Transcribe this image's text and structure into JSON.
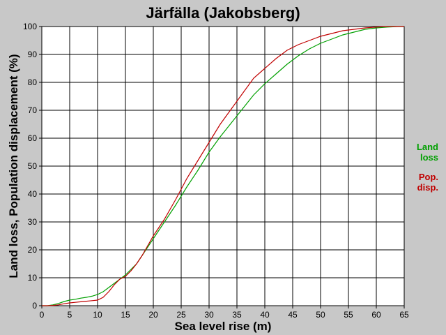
{
  "chart_data": {
    "type": "line",
    "title": "Järfälla (Jakobsberg)",
    "xlabel": "Sea level rise (m)",
    "ylabel": "Land loss, Population displacement (%)",
    "xlim": [
      0,
      65
    ],
    "ylim": [
      0,
      100
    ],
    "xticks": [
      "0",
      "5",
      "10",
      "15",
      "20",
      "25",
      "30",
      "35",
      "40",
      "45",
      "50",
      "55",
      "60",
      "65"
    ],
    "yticks": [
      "0",
      "10",
      "20",
      "30",
      "40",
      "50",
      "60",
      "70",
      "80",
      "90",
      "100"
    ],
    "grid": true,
    "legend_position": "right",
    "series": [
      {
        "name": "Land loss",
        "legend_lines": [
          "Land",
          "loss"
        ],
        "color": "#00a000",
        "x": [
          0,
          1,
          2,
          3,
          4,
          5,
          6,
          7,
          8,
          9,
          10,
          11,
          12,
          13,
          14,
          15,
          16,
          17,
          18,
          19,
          20,
          22,
          24,
          26,
          28,
          30,
          32,
          34,
          36,
          38,
          40,
          42,
          44,
          46,
          48,
          50,
          52,
          54,
          56,
          58,
          60,
          62,
          64,
          65
        ],
        "y": [
          0,
          0,
          0.3,
          0.8,
          1.5,
          2,
          2.3,
          2.7,
          3,
          3.4,
          4,
          5,
          6.5,
          8,
          9.5,
          11,
          13,
          15,
          18,
          21,
          24,
          30,
          36,
          42.5,
          48.5,
          55,
          60.5,
          65.5,
          70.5,
          75.5,
          79.5,
          83,
          86.5,
          89.5,
          92,
          94,
          95.5,
          97,
          98,
          99,
          99.5,
          99.8,
          100,
          100
        ]
      },
      {
        "name": "Pop. disp.",
        "legend_lines": [
          "Pop.",
          "disp."
        ],
        "color": "#c00000",
        "x": [
          0,
          1,
          2,
          3,
          4,
          5,
          6,
          7,
          8,
          9,
          10,
          11,
          12,
          13,
          14,
          15,
          16,
          17,
          18,
          19,
          20,
          22,
          24,
          26,
          28,
          30,
          32,
          34,
          36,
          38,
          40,
          42,
          44,
          46,
          48,
          50,
          52,
          54,
          56,
          58,
          60,
          62,
          64,
          65
        ],
        "y": [
          0,
          0,
          0.1,
          0.3,
          0.7,
          1,
          1.2,
          1.4,
          1.6,
          1.8,
          2,
          3,
          5,
          7.5,
          9.5,
          10.5,
          12.5,
          15,
          18,
          21.5,
          25,
          31,
          38,
          45.5,
          52,
          58.5,
          65,
          70.5,
          76,
          81.5,
          85,
          88.5,
          91.5,
          93.5,
          95,
          96.5,
          97.5,
          98.5,
          99,
          99.5,
          99.8,
          100,
          100,
          100
        ]
      }
    ]
  }
}
